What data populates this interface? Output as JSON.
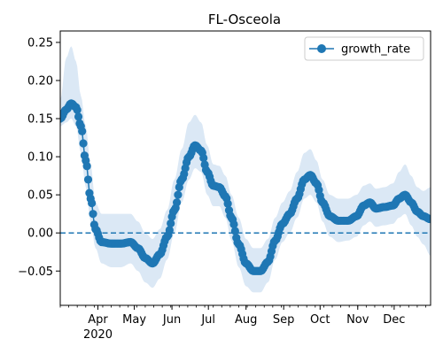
{
  "chart_data": {
    "type": "line",
    "title": "FL-Osceola",
    "xlabel": "",
    "ylabel": "",
    "x_axis": {
      "month_ticks": [
        "Apr",
        "May",
        "Jun",
        "Jul",
        "Aug",
        "Sep",
        "Oct",
        "Nov",
        "Dec"
      ],
      "year_label": "2020",
      "range": [
        "2020-03-01",
        "2020-12-31"
      ]
    },
    "y_axis": {
      "range": [
        -0.095,
        0.265
      ],
      "ticks": [
        "−0.05",
        "0.00",
        "0.05",
        "0.10",
        "0.15",
        "0.20",
        "0.25"
      ]
    },
    "legend": {
      "placement": "top-right",
      "entries": [
        "growth_rate"
      ]
    },
    "reference_line": {
      "y": 0.0,
      "style": "dashed"
    },
    "series": [
      {
        "name": "growth_rate",
        "color": "#1f77b4",
        "band_color": "#dbe8f5",
        "points": [
          {
            "x": "2020-03-01",
            "y": 0.15,
            "lo": 0.14,
            "hi": 0.175
          },
          {
            "x": "2020-03-06",
            "y": 0.162,
            "lo": 0.145,
            "hi": 0.23
          },
          {
            "x": "2020-03-10",
            "y": 0.17,
            "lo": 0.15,
            "hi": 0.245
          },
          {
            "x": "2020-03-14",
            "y": 0.165,
            "lo": 0.14,
            "hi": 0.225
          },
          {
            "x": "2020-03-18",
            "y": 0.14,
            "lo": 0.105,
            "hi": 0.18
          },
          {
            "x": "2020-03-22",
            "y": 0.095,
            "lo": 0.06,
            "hi": 0.14
          },
          {
            "x": "2020-03-26",
            "y": 0.045,
            "lo": 0.015,
            "hi": 0.09
          },
          {
            "x": "2020-03-30",
            "y": 0.005,
            "lo": -0.02,
            "hi": 0.04
          },
          {
            "x": "2020-04-04",
            "y": -0.012,
            "lo": -0.04,
            "hi": 0.025
          },
          {
            "x": "2020-04-12",
            "y": -0.014,
            "lo": -0.045,
            "hi": 0.025
          },
          {
            "x": "2020-04-20",
            "y": -0.014,
            "lo": -0.045,
            "hi": 0.025
          },
          {
            "x": "2020-04-28",
            "y": -0.012,
            "lo": -0.04,
            "hi": 0.025
          },
          {
            "x": "2020-05-04",
            "y": -0.02,
            "lo": -0.05,
            "hi": 0.015
          },
          {
            "x": "2020-05-10",
            "y": -0.033,
            "lo": -0.065,
            "hi": 0.0
          },
          {
            "x": "2020-05-16",
            "y": -0.04,
            "lo": -0.072,
            "hi": -0.008
          },
          {
            "x": "2020-05-22",
            "y": -0.028,
            "lo": -0.06,
            "hi": 0.005
          },
          {
            "x": "2020-05-28",
            "y": -0.005,
            "lo": -0.035,
            "hi": 0.03
          },
          {
            "x": "2020-06-03",
            "y": 0.03,
            "lo": 0.0,
            "hi": 0.07
          },
          {
            "x": "2020-06-09",
            "y": 0.07,
            "lo": 0.04,
            "hi": 0.11
          },
          {
            "x": "2020-06-15",
            "y": 0.1,
            "lo": 0.07,
            "hi": 0.145
          },
          {
            "x": "2020-06-20",
            "y": 0.115,
            "lo": 0.085,
            "hi": 0.155
          },
          {
            "x": "2020-06-25",
            "y": 0.108,
            "lo": 0.08,
            "hi": 0.145
          },
          {
            "x": "2020-06-30",
            "y": 0.08,
            "lo": 0.05,
            "hi": 0.115
          },
          {
            "x": "2020-07-05",
            "y": 0.062,
            "lo": 0.035,
            "hi": 0.09
          },
          {
            "x": "2020-07-10",
            "y": 0.06,
            "lo": 0.035,
            "hi": 0.088
          },
          {
            "x": "2020-07-15",
            "y": 0.048,
            "lo": 0.02,
            "hi": 0.075
          },
          {
            "x": "2020-07-20",
            "y": 0.02,
            "lo": -0.01,
            "hi": 0.05
          },
          {
            "x": "2020-07-26",
            "y": -0.015,
            "lo": -0.045,
            "hi": 0.02
          },
          {
            "x": "2020-08-01",
            "y": -0.04,
            "lo": -0.07,
            "hi": -0.008
          },
          {
            "x": "2020-08-07",
            "y": -0.05,
            "lo": -0.078,
            "hi": -0.02
          },
          {
            "x": "2020-08-13",
            "y": -0.05,
            "lo": -0.078,
            "hi": -0.02
          },
          {
            "x": "2020-08-19",
            "y": -0.038,
            "lo": -0.065,
            "hi": -0.008
          },
          {
            "x": "2020-08-25",
            "y": -0.01,
            "lo": -0.035,
            "hi": 0.02
          },
          {
            "x": "2020-08-31",
            "y": 0.012,
            "lo": -0.012,
            "hi": 0.04
          },
          {
            "x": "2020-09-06",
            "y": 0.025,
            "lo": 0.0,
            "hi": 0.055
          },
          {
            "x": "2020-09-12",
            "y": 0.045,
            "lo": 0.02,
            "hi": 0.08
          },
          {
            "x": "2020-09-18",
            "y": 0.07,
            "lo": 0.045,
            "hi": 0.105
          },
          {
            "x": "2020-09-23",
            "y": 0.076,
            "lo": 0.05,
            "hi": 0.11
          },
          {
            "x": "2020-09-28",
            "y": 0.065,
            "lo": 0.04,
            "hi": 0.095
          },
          {
            "x": "2020-10-03",
            "y": 0.04,
            "lo": 0.015,
            "hi": 0.07
          },
          {
            "x": "2020-10-09",
            "y": 0.022,
            "lo": -0.005,
            "hi": 0.05
          },
          {
            "x": "2020-10-16",
            "y": 0.016,
            "lo": -0.012,
            "hi": 0.045
          },
          {
            "x": "2020-10-24",
            "y": 0.016,
            "lo": -0.01,
            "hi": 0.045
          },
          {
            "x": "2020-10-31",
            "y": 0.022,
            "lo": -0.005,
            "hi": 0.05
          },
          {
            "x": "2020-11-06",
            "y": 0.036,
            "lo": 0.01,
            "hi": 0.062
          },
          {
            "x": "2020-11-11",
            "y": 0.04,
            "lo": 0.015,
            "hi": 0.065
          },
          {
            "x": "2020-11-16",
            "y": 0.032,
            "lo": 0.008,
            "hi": 0.058
          },
          {
            "x": "2020-11-23",
            "y": 0.034,
            "lo": 0.01,
            "hi": 0.06
          },
          {
            "x": "2020-11-30",
            "y": 0.036,
            "lo": 0.012,
            "hi": 0.065
          },
          {
            "x": "2020-12-05",
            "y": 0.045,
            "lo": 0.02,
            "hi": 0.08
          },
          {
            "x": "2020-12-10",
            "y": 0.05,
            "lo": 0.025,
            "hi": 0.09
          },
          {
            "x": "2020-12-15",
            "y": 0.04,
            "lo": 0.01,
            "hi": 0.075
          },
          {
            "x": "2020-12-20",
            "y": 0.028,
            "lo": -0.005,
            "hi": 0.06
          },
          {
            "x": "2020-12-25",
            "y": 0.022,
            "lo": -0.015,
            "hi": 0.055
          },
          {
            "x": "2020-12-31",
            "y": 0.018,
            "lo": -0.03,
            "hi": 0.06
          }
        ]
      }
    ]
  }
}
